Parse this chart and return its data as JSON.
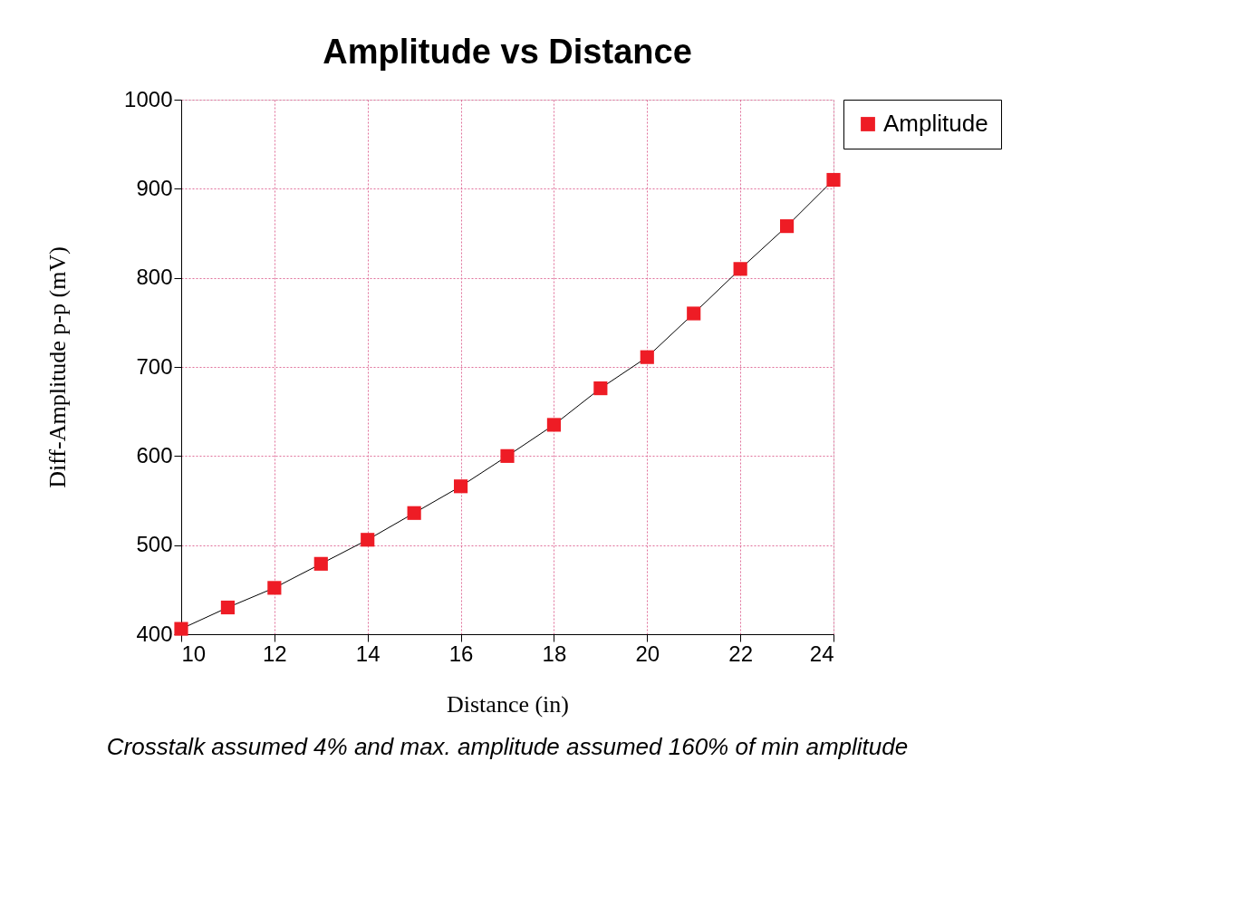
{
  "chart_data": {
    "type": "line",
    "title": "Amplitude vs Distance",
    "xlabel": "Distance (in)",
    "ylabel": "Diff-Amplitude p-p (mV)",
    "x": [
      10,
      11,
      12,
      13,
      14,
      15,
      16,
      17,
      18,
      19,
      20,
      21,
      22,
      23,
      24
    ],
    "series": [
      {
        "name": "Amplitude",
        "color": "#ee1c25",
        "values": [
          406,
          430,
          452,
          479,
          506,
          536,
          566,
          600,
          635,
          676,
          711,
          760,
          810,
          858,
          910
        ]
      }
    ],
    "xlim": [
      10,
      24
    ],
    "xticks": [
      10,
      12,
      14,
      16,
      18,
      20,
      22,
      24
    ],
    "ylim": [
      400,
      1000
    ],
    "yticks": [
      400,
      500,
      600,
      700,
      800,
      900,
      1000
    ],
    "grid": true,
    "legend": "top right",
    "marker": "square",
    "line_style": "solid",
    "annotations": [
      "Crosstalk assumed 4% and max. amplitude assumed 160% of min amplitude"
    ]
  }
}
